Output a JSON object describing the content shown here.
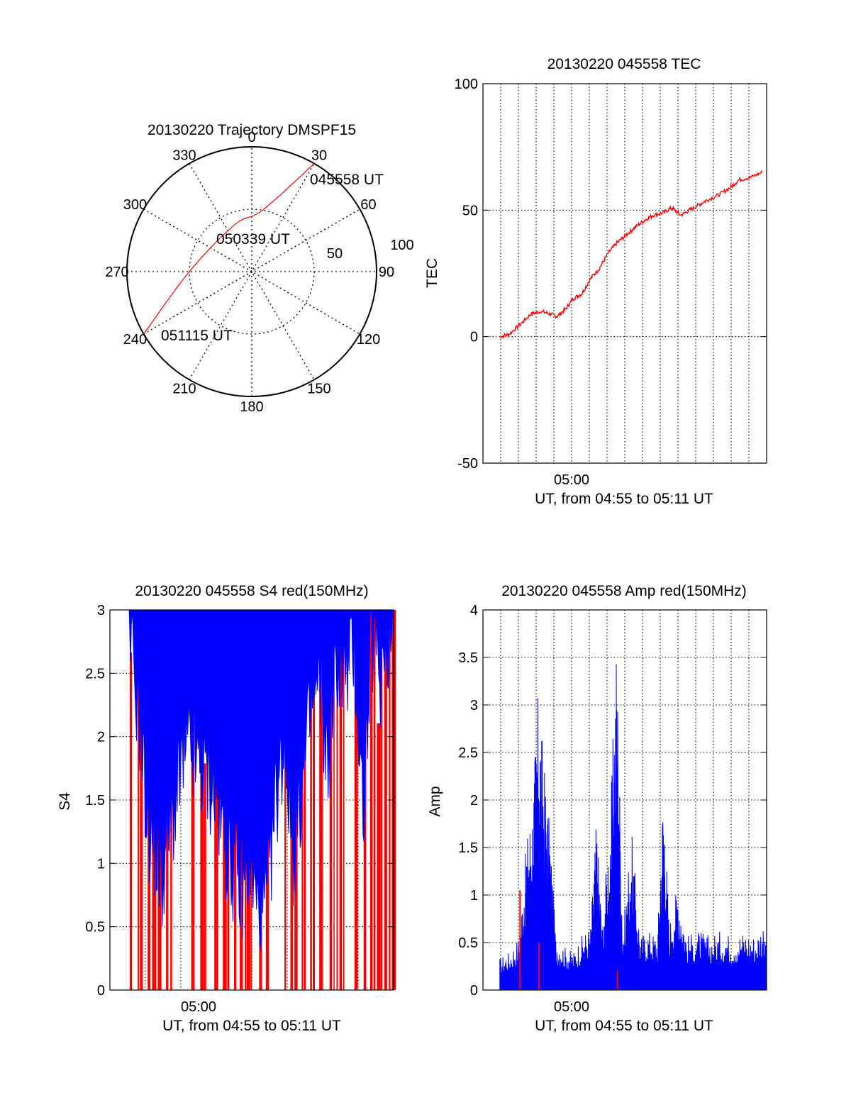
{
  "chart_data": [
    {
      "type": "polar",
      "title": "20130220 Trajectory DMSPF15",
      "angle_labels": [
        "0",
        "30",
        "60",
        "90",
        "120",
        "150",
        "180",
        "210",
        "240",
        "270",
        "300",
        "330"
      ],
      "radial_labels": [
        "50",
        "100"
      ],
      "rlim": [
        0,
        100
      ],
      "grid": true,
      "series": [
        {
          "color": "#ff0000",
          "points": [
            [
              30,
              100
            ],
            [
              10,
              50
            ],
            [
              -20,
              40
            ],
            [
              -90,
              50
            ],
            [
              -120,
              100
            ]
          ]
        }
      ],
      "annotations": [
        {
          "text": "045558 UT",
          "azimuth": 30,
          "radius": 100
        },
        {
          "text": "050339 UT",
          "azimuth": -20,
          "radius": 40
        },
        {
          "text": "051115 UT",
          "azimuth": -120,
          "radius": 100
        }
      ]
    },
    {
      "type": "line",
      "title": "20130220 045558 TEC",
      "xlabel": "UT, from 04:55 to 05:11 UT",
      "ylabel": "TEC",
      "x_range": [
        "04:55:58",
        "05:11:15"
      ],
      "ylim": [
        -50,
        100
      ],
      "y_ticks": [
        "-50",
        "0",
        "50",
        "100"
      ],
      "x_ticks": [
        "05:00"
      ],
      "grid": true,
      "series": [
        {
          "color": "#ff0000",
          "points": [
            [
              "04:55:58",
              0
            ],
            [
              "04:56:30",
              1
            ],
            [
              "04:57:10",
              5
            ],
            [
              "04:57:45",
              9
            ],
            [
              "04:58:20",
              10
            ],
            [
              "04:58:50",
              9
            ],
            [
              "04:59:15",
              8
            ],
            [
              "04:59:45",
              11
            ],
            [
              "05:00:10",
              15
            ],
            [
              "05:00:40",
              17
            ],
            [
              "05:01:10",
              23
            ],
            [
              "05:01:40",
              27
            ],
            [
              "05:02:10",
              33
            ],
            [
              "05:02:40",
              37
            ],
            [
              "05:03:10",
              40
            ],
            [
              "05:03:40",
              43
            ],
            [
              "05:04:15",
              46
            ],
            [
              "05:04:45",
              48
            ],
            [
              "05:05:20",
              49
            ],
            [
              "05:05:50",
              51
            ],
            [
              "05:06:20",
              48
            ],
            [
              "05:06:50",
              50
            ],
            [
              "05:07:20",
              52
            ],
            [
              "05:07:50",
              54
            ],
            [
              "05:08:30",
              56
            ],
            [
              "05:09:10",
              59
            ],
            [
              "05:09:40",
              62
            ],
            [
              "05:10:20",
              63
            ],
            [
              "05:11:00",
              65
            ]
          ]
        }
      ]
    },
    {
      "type": "area",
      "title": "20130220 045558 S4 red(150MHz)",
      "xlabel": "UT, from 04:55 to 05:11 UT",
      "ylabel": "S4",
      "x_range": [
        "04:55:58",
        "05:11:15"
      ],
      "ylim": [
        0,
        3
      ],
      "y_ticks": [
        "0",
        "0.5",
        "1",
        "1.5",
        "2",
        "2.5",
        "3"
      ],
      "x_ticks": [
        "05:00"
      ],
      "grid": true,
      "series": [
        {
          "color": "#0000ff",
          "points": [
            [
              "04:55:58",
              3
            ],
            [
              "04:56:40",
              2.2
            ],
            [
              "04:57:10",
              1.3
            ],
            [
              "04:57:40",
              1.1
            ],
            [
              "04:58:00",
              0.9
            ],
            [
              "04:58:30",
              1.3
            ],
            [
              "04:59:00",
              1.7
            ],
            [
              "04:59:30",
              1.9
            ],
            [
              "05:00:00",
              1.8
            ],
            [
              "05:00:30",
              1.7
            ],
            [
              "05:01:00",
              1.6
            ],
            [
              "05:01:30",
              1.2
            ],
            [
              "05:02:00",
              1.0
            ],
            [
              "05:02:30",
              0.8
            ],
            [
              "05:03:00",
              1.0
            ],
            [
              "05:03:30",
              0.6
            ],
            [
              "05:04:00",
              0.7
            ],
            [
              "05:04:30",
              1.5
            ],
            [
              "05:05:00",
              2.0
            ],
            [
              "05:05:30",
              1.1
            ],
            [
              "05:06:00",
              1.6
            ],
            [
              "05:06:30",
              2.2
            ],
            [
              "05:07:00",
              2.4
            ],
            [
              "05:07:30",
              1.8
            ],
            [
              "05:08:00",
              2.6
            ],
            [
              "05:08:30",
              2.5
            ],
            [
              "05:09:00",
              2.7
            ],
            [
              "05:09:30",
              1.4
            ],
            [
              "05:10:00",
              2.8
            ],
            [
              "05:10:30",
              2.5
            ],
            [
              "05:11:15",
              3
            ]
          ]
        },
        {
          "color": "#ff0000",
          "style": "vertical spikes 0-3"
        }
      ]
    },
    {
      "type": "area",
      "title": "20130220 045558 Amp red(150MHz)",
      "xlabel": "UT, from 04:55 to 05:11 UT",
      "ylabel": "Amp",
      "x_range": [
        "04:55:58",
        "05:11:15"
      ],
      "ylim": [
        0,
        4
      ],
      "y_ticks": [
        "0",
        "0.5",
        "1",
        "1.5",
        "2",
        "2.5",
        "3",
        "3.5",
        "4"
      ],
      "x_ticks": [
        "05:00"
      ],
      "grid": true,
      "series": [
        {
          "color": "#0000ff",
          "points": [
            [
              "04:55:58",
              0.3
            ],
            [
              "04:56:30",
              0.35
            ],
            [
              "04:57:05",
              0.5
            ],
            [
              "04:57:30",
              1.4
            ],
            [
              "04:57:50",
              1.75
            ],
            [
              "04:58:10",
              2.8
            ],
            [
              "04:58:30",
              2.1
            ],
            [
              "04:58:50",
              1.5
            ],
            [
              "04:59:10",
              0.5
            ],
            [
              "04:59:40",
              0.4
            ],
            [
              "05:00:10",
              0.35
            ],
            [
              "05:00:40",
              0.5
            ],
            [
              "05:01:10",
              0.6
            ],
            [
              "05:01:30",
              1.6
            ],
            [
              "05:01:50",
              0.6
            ],
            [
              "05:02:20",
              1.8
            ],
            [
              "05:02:40",
              3.35
            ],
            [
              "05:03:00",
              0.5
            ],
            [
              "05:03:30",
              1.5
            ],
            [
              "05:04:00",
              0.5
            ],
            [
              "05:04:30",
              0.55
            ],
            [
              "05:05:00",
              0.5
            ],
            [
              "05:05:20",
              1.95
            ],
            [
              "05:05:40",
              0.6
            ],
            [
              "05:06:10",
              1.0
            ],
            [
              "05:06:40",
              0.5
            ],
            [
              "05:07:20",
              0.55
            ],
            [
              "05:08:00",
              0.5
            ],
            [
              "05:08:40",
              0.55
            ],
            [
              "05:09:20",
              0.5
            ],
            [
              "05:10:00",
              0.55
            ],
            [
              "05:10:40",
              0.5
            ],
            [
              "05:11:15",
              0.7
            ]
          ]
        },
        {
          "color": "#ff0000",
          "points": [
            [
              "04:57:05",
              1.05
            ],
            [
              "04:58:10",
              0.5
            ],
            [
              "05:02:40",
              0.2
            ]
          ]
        }
      ]
    }
  ]
}
